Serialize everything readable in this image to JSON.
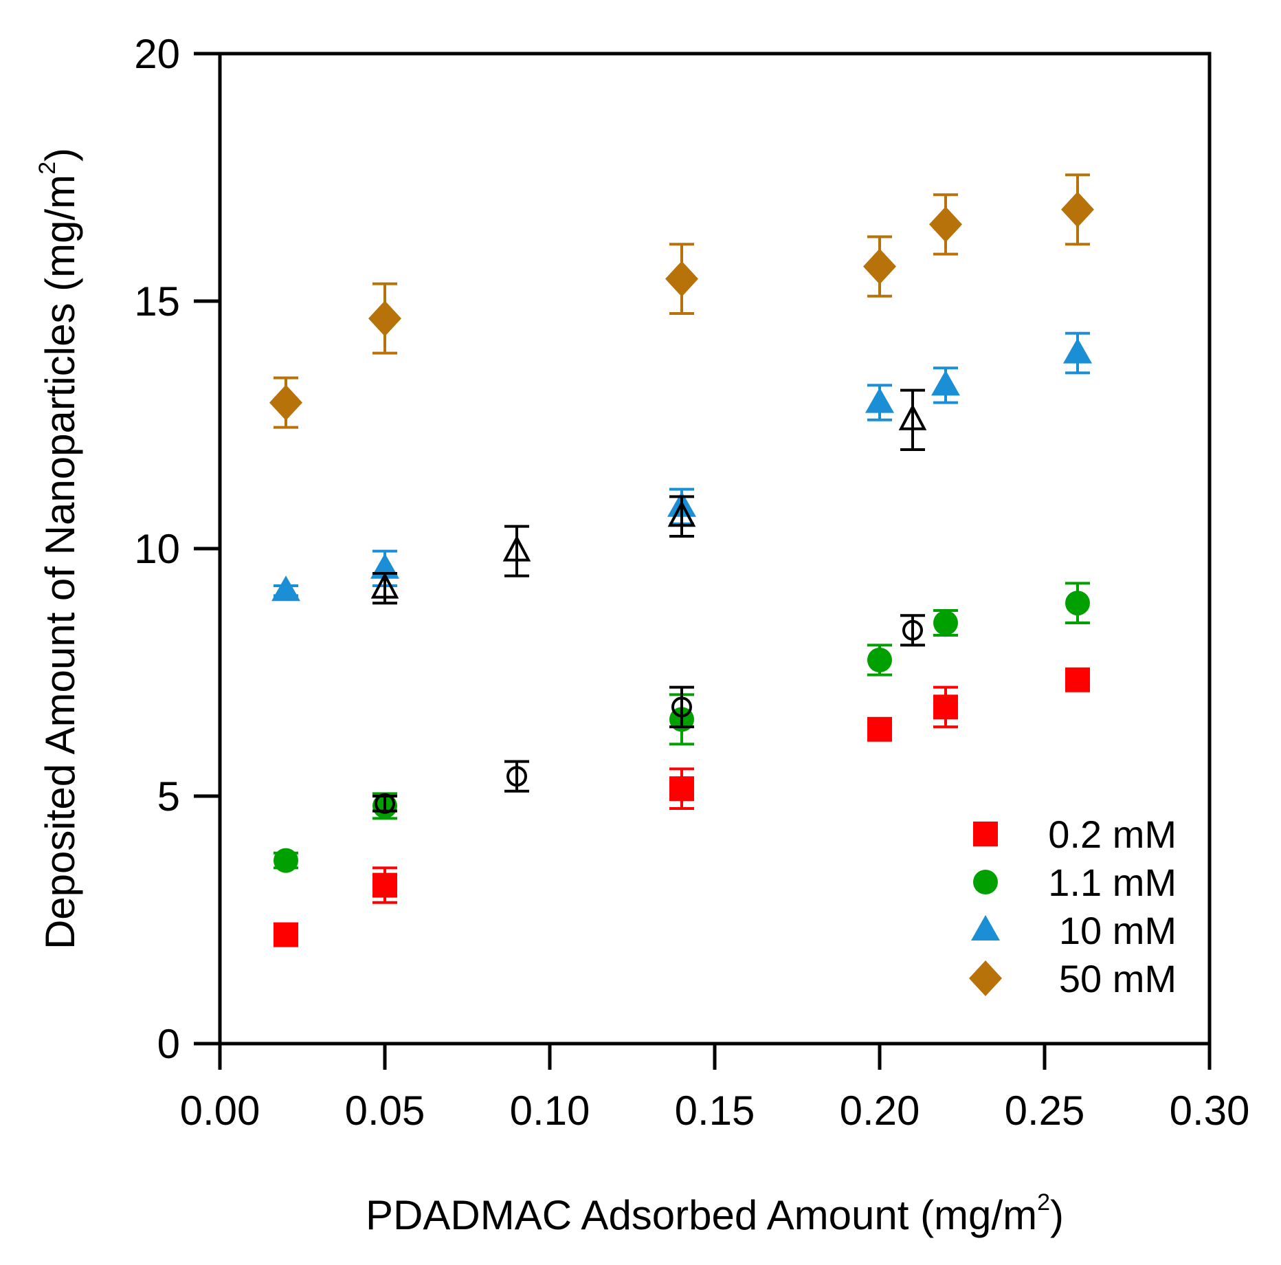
{
  "chart_data": {
    "type": "scatter",
    "title": "",
    "xlabel": "PDADMAC Adsorbed Amount (mg/m",
    "xlabel_sup": "2",
    "xlabel_close": ")",
    "ylabel": "Deposited Amount of Nanoparticles (mg/m",
    "ylabel_sup": "2",
    "ylabel_close": ")",
    "xlim": [
      0,
      0.3
    ],
    "ylim": [
      0,
      20
    ],
    "xticks": [
      0,
      0.05,
      0.1,
      0.15,
      0.2,
      0.25,
      0.3
    ],
    "xtick_labels": [
      "0.00",
      "0.05",
      "0.10",
      "0.15",
      "0.20",
      "0.25",
      "0.30"
    ],
    "yticks": [
      0,
      5,
      10,
      15,
      20
    ],
    "ytick_labels": [
      "0",
      "5",
      "10",
      "15",
      "20"
    ],
    "grid": false,
    "legend_position": "bottom-right",
    "series": [
      {
        "name": "0.2 mM",
        "marker": "square",
        "color": "#ff0000",
        "in_legend": true,
        "points": [
          {
            "x": 0.02,
            "y": 2.2,
            "err": 0.15
          },
          {
            "x": 0.05,
            "y": 3.2,
            "err": 0.35
          },
          {
            "x": 0.14,
            "y": 5.15,
            "err": 0.4
          },
          {
            "x": 0.2,
            "y": 6.35,
            "err": 0.15
          },
          {
            "x": 0.22,
            "y": 6.8,
            "err": 0.4
          },
          {
            "x": 0.26,
            "y": 7.35,
            "err": 0.2
          }
        ]
      },
      {
        "name": "1.1 mM",
        "marker": "circle",
        "color": "#00a000",
        "in_legend": true,
        "points": [
          {
            "x": 0.02,
            "y": 3.7,
            "err": 0.15
          },
          {
            "x": 0.05,
            "y": 4.8,
            "err": 0.25
          },
          {
            "x": 0.14,
            "y": 6.55,
            "err": 0.5
          },
          {
            "x": 0.2,
            "y": 7.75,
            "err": 0.3
          },
          {
            "x": 0.22,
            "y": 8.5,
            "err": 0.25
          },
          {
            "x": 0.26,
            "y": 8.9,
            "err": 0.4
          }
        ]
      },
      {
        "name": "10 mM",
        "marker": "triangle",
        "color": "#1a8fd6",
        "in_legend": true,
        "points": [
          {
            "x": 0.02,
            "y": 9.15,
            "err": 0.1
          },
          {
            "x": 0.05,
            "y": 9.6,
            "err": 0.35
          },
          {
            "x": 0.14,
            "y": 10.85,
            "err": 0.35
          },
          {
            "x": 0.2,
            "y": 12.95,
            "err": 0.35
          },
          {
            "x": 0.22,
            "y": 13.3,
            "err": 0.35
          },
          {
            "x": 0.26,
            "y": 13.95,
            "err": 0.4
          }
        ]
      },
      {
        "name": "50 mM",
        "marker": "diamond",
        "color": "#b8720a",
        "in_legend": true,
        "points": [
          {
            "x": 0.02,
            "y": 12.95,
            "err": 0.5
          },
          {
            "x": 0.05,
            "y": 14.65,
            "err": 0.7
          },
          {
            "x": 0.14,
            "y": 15.45,
            "err": 0.7
          },
          {
            "x": 0.2,
            "y": 15.7,
            "err": 0.6
          },
          {
            "x": 0.22,
            "y": 16.55,
            "err": 0.6
          },
          {
            "x": 0.26,
            "y": 16.85,
            "err": 0.7
          }
        ]
      },
      {
        "name": "open triangles",
        "marker": "triangle-open",
        "color": "#000000",
        "in_legend": false,
        "points": [
          {
            "x": 0.05,
            "y": 9.2,
            "err": 0.3
          },
          {
            "x": 0.09,
            "y": 9.95,
            "err": 0.5
          },
          {
            "x": 0.14,
            "y": 10.65,
            "err": 0.4
          },
          {
            "x": 0.21,
            "y": 12.6,
            "err": 0.6
          }
        ]
      },
      {
        "name": "open circles",
        "marker": "circle-open",
        "color": "#000000",
        "in_legend": false,
        "points": [
          {
            "x": 0.05,
            "y": 4.85,
            "err": 0.15
          },
          {
            "x": 0.09,
            "y": 5.4,
            "err": 0.3
          },
          {
            "x": 0.14,
            "y": 6.8,
            "err": 0.4
          },
          {
            "x": 0.21,
            "y": 8.35,
            "err": 0.3
          }
        ]
      }
    ]
  }
}
